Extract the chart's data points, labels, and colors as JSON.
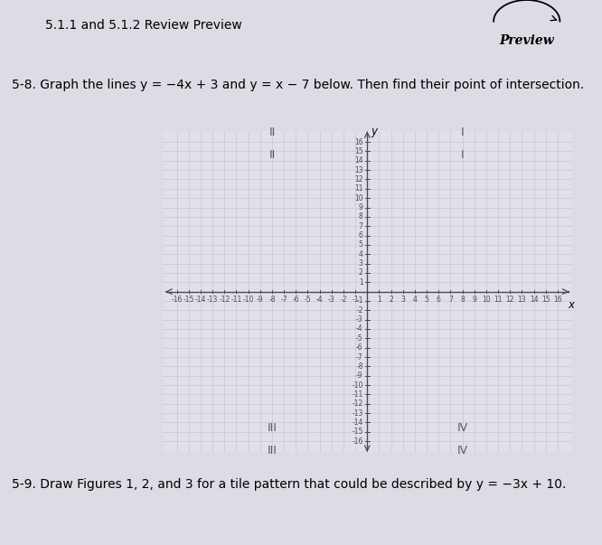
{
  "title_main": "5.1.1 and 5.1.2 Review Preview",
  "problem_58": "5-8. Graph the lines y = -4x + 3 and y = x - 7 below. Then find their point of intersection.",
  "problem_59": "5-9. Draw Figures 1, 2, and 3 for a tile pattern that could be described by y = -3x + 10.",
  "preview_text": "Preview",
  "x_min": -16,
  "x_max": 16,
  "y_min": -16,
  "y_max": 16,
  "grid_color": "#c0c0cc",
  "axis_color": "#4a4a5a",
  "graph_bg": "#e0e0ea",
  "page_bg": "#dcdce4",
  "axis_label_x": "x",
  "axis_label_y": "y",
  "font_size_body": 10,
  "font_size_tick": 5.5
}
